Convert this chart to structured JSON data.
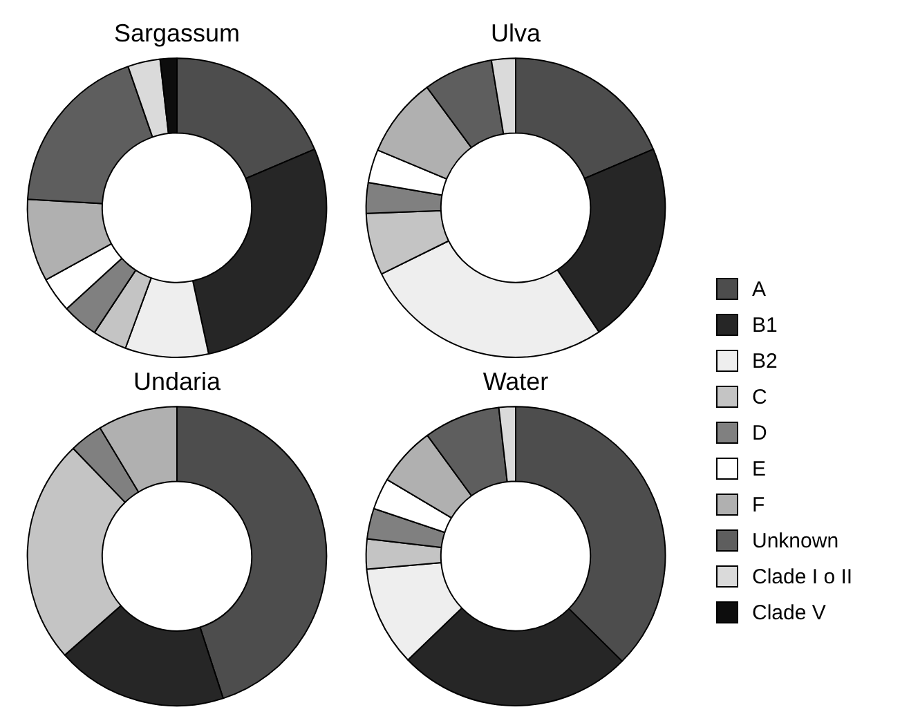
{
  "chart_data": [
    {
      "type": "donut",
      "title": "Sargassum",
      "legend": "right",
      "categories": [
        "A",
        "B1",
        "B2",
        "C",
        "D",
        "E",
        "F",
        "Unknown",
        "Clade I o II",
        "Clade V"
      ],
      "values": [
        18.6,
        28,
        9,
        3.7,
        3.9,
        3.8,
        8.9,
        18.8,
        3.5,
        1.8
      ],
      "colors": [
        "#4d4d4d",
        "#262626",
        "#eeeeee",
        "#c4c4c4",
        "#808080",
        "#ffffff",
        "#b0b0b0",
        "#5e5e5e",
        "#dadada",
        "#0d0d0d"
      ]
    },
    {
      "type": "donut",
      "title": "Ulva",
      "categories": [
        null,
        null,
        null,
        null,
        null,
        null,
        null,
        null,
        null
      ],
      "values": [
        18.6,
        22,
        27.1,
        6.7,
        3.3,
        3.6,
        8.6,
        7.5,
        2.6
      ],
      "colors": [
        "#4d4d4d",
        "#262626",
        "#eeeeee",
        "#c4c4c4",
        "#808080",
        "#ffffff",
        "#b0b0b0",
        "#5e5e5e",
        "#dadada"
      ]
    },
    {
      "type": "donut",
      "title": "Undaria",
      "categories": [
        null,
        null,
        null,
        null,
        null
      ],
      "values": [
        45,
        18.5,
        24.3,
        3.6,
        8.6
      ],
      "colors": [
        "#4d4d4d",
        "#262626",
        "#c4c4c4",
        "#808080",
        "#b0b0b0"
      ]
    },
    {
      "type": "donut",
      "title": "Water",
      "categories": [
        null,
        null,
        null,
        null,
        null,
        null,
        null,
        null,
        null
      ],
      "values": [
        37.4,
        25.4,
        10.8,
        3.25,
        3.3,
        3.4,
        6.4,
        8.25,
        1.8
      ],
      "colors": [
        "#4d4d4d",
        "#262626",
        "#eeeeee",
        "#c4c4c4",
        "#808080",
        "#ffffff",
        "#b0b0b0",
        "#5e5e5e",
        "#dadada"
      ]
    }
  ]
}
